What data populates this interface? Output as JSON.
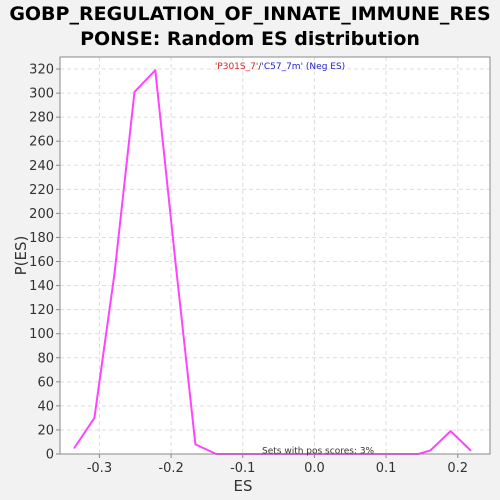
{
  "chart_data": {
    "type": "line",
    "title_lines": [
      "GOBP_REGULATION_OF_INNATE_IMMUNE_RES",
      "PONSE: Random ES distribution"
    ],
    "xlabel": "ES",
    "ylabel": "P(ES)",
    "xlim": [
      -0.355,
      0.245
    ],
    "ylim": [
      0,
      330
    ],
    "xticks": [
      -0.3,
      -0.2,
      -0.1,
      0.0,
      0.1,
      0.2
    ],
    "xtick_labels": [
      "-0.3",
      "-0.2",
      "-0.1",
      "0.0",
      "0.1",
      "0.2"
    ],
    "yticks": [
      0,
      20,
      40,
      60,
      80,
      100,
      120,
      140,
      160,
      180,
      200,
      220,
      240,
      260,
      280,
      300,
      320
    ],
    "grid": true,
    "series": [
      {
        "color": "#ff44ff",
        "x": [
          -0.335,
          -0.307,
          -0.279,
          -0.251,
          -0.222,
          -0.194,
          -0.166,
          -0.137,
          -0.109,
          -0.081,
          -0.053,
          -0.024,
          0.004,
          0.032,
          0.061,
          0.089,
          0.117,
          0.145,
          0.162,
          0.19,
          0.218
        ],
        "y": [
          5,
          30,
          150,
          301,
          319,
          160,
          8,
          0,
          0,
          0,
          0,
          0,
          0,
          0,
          0,
          0,
          0,
          0,
          3,
          19,
          3
        ]
      }
    ],
    "legend": {
      "part1": "'P301S_7'",
      "sep": "/",
      "part2": "'C57_7m'",
      "part3": " (Neg ES)",
      "part1_color": "#dd2222",
      "part2_color": "#2222cc"
    },
    "annotation": "Sets with pos scores: 3%",
    "frame_color": "#888888",
    "grid_color": "#dddddd"
  }
}
